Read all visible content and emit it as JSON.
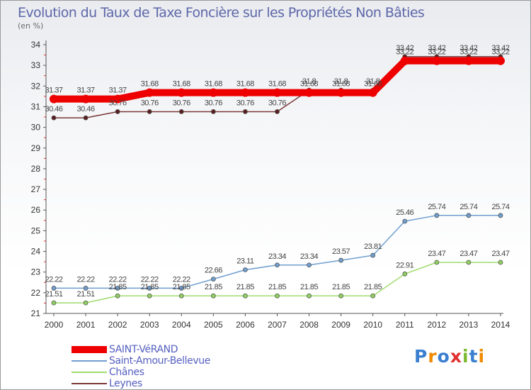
{
  "header": {
    "title": "Evolution du Taux de Taxe Foncière sur les Propriétés Non Bâties",
    "unit": "(en %)"
  },
  "logo": {
    "text": "Proxiti"
  },
  "chart_data": {
    "type": "line",
    "title": "Evolution du Taux de Taxe Foncière sur les Propriétés Non Bâties",
    "ylabel": "(en %)",
    "xlabel": "",
    "x": [
      "2000",
      "2001",
      "2002",
      "2003",
      "2004",
      "2005",
      "2006",
      "2007",
      "2008",
      "2009",
      "2010",
      "2011",
      "2012",
      "2013",
      "2014"
    ],
    "ylim": [
      21,
      34
    ],
    "yticks": [
      21,
      22,
      23,
      24,
      25,
      26,
      27,
      28,
      29,
      30,
      31,
      32,
      33,
      34
    ],
    "grid": false,
    "legend_position": "bottom-left",
    "series": [
      {
        "name": "SAINT-VéRAND",
        "color": "#ee0000",
        "values": [
          31.37,
          31.37,
          31.37,
          31.68,
          31.68,
          31.68,
          31.68,
          31.68,
          31.68,
          31.68,
          31.68,
          33.22,
          33.22,
          33.22,
          33.22
        ],
        "labels": [
          "31.37",
          "31.37",
          "31.37",
          "31.68",
          "31.68",
          "31.68",
          "31.68",
          "31.68",
          "31.68",
          "31.68",
          "31.68",
          "33.22",
          "33.22",
          "33.22",
          "33.22"
        ]
      },
      {
        "name": "Saint-Amour-Bellevue",
        "color": "#6f9fcf",
        "values": [
          22.22,
          22.22,
          22.22,
          22.22,
          22.22,
          22.66,
          23.11,
          23.34,
          23.34,
          23.57,
          23.81,
          25.46,
          25.74,
          25.74,
          25.74
        ],
        "labels": [
          "22.22",
          "22.22",
          "22.22",
          "22.22",
          "22.22",
          "22.66",
          "23.11",
          "23.34",
          "23.34",
          "23.57",
          "23.81",
          "25.46",
          "25.74",
          "25.74",
          "25.74"
        ]
      },
      {
        "name": "Chânes",
        "color": "#9fdc6f",
        "values": [
          21.51,
          21.51,
          21.85,
          21.85,
          21.85,
          21.85,
          21.85,
          21.85,
          21.85,
          21.85,
          21.85,
          22.91,
          23.47,
          23.47,
          23.47
        ],
        "labels": [
          "21.51",
          "21.51",
          "21.85",
          "21.85",
          "21.85",
          "21.85",
          "21.85",
          "21.85",
          "21.85",
          "21.85",
          "21.85",
          "22.91",
          "23.47",
          "23.47",
          "23.47"
        ]
      },
      {
        "name": "Leynes",
        "color": "#7a3a3a",
        "values": [
          30.46,
          30.46,
          30.76,
          30.76,
          30.76,
          30.76,
          30.76,
          30.76,
          31.8,
          31.8,
          31.8,
          33.42,
          33.42,
          33.42,
          33.42
        ],
        "labels": [
          "30.46",
          "30.46",
          "30.76",
          "30.76",
          "30.76",
          "30.76",
          "30.76",
          "30.76",
          "31.8",
          "31.8",
          "31.8",
          "33.42",
          "33.42",
          "33.42",
          "33.42"
        ]
      }
    ]
  }
}
